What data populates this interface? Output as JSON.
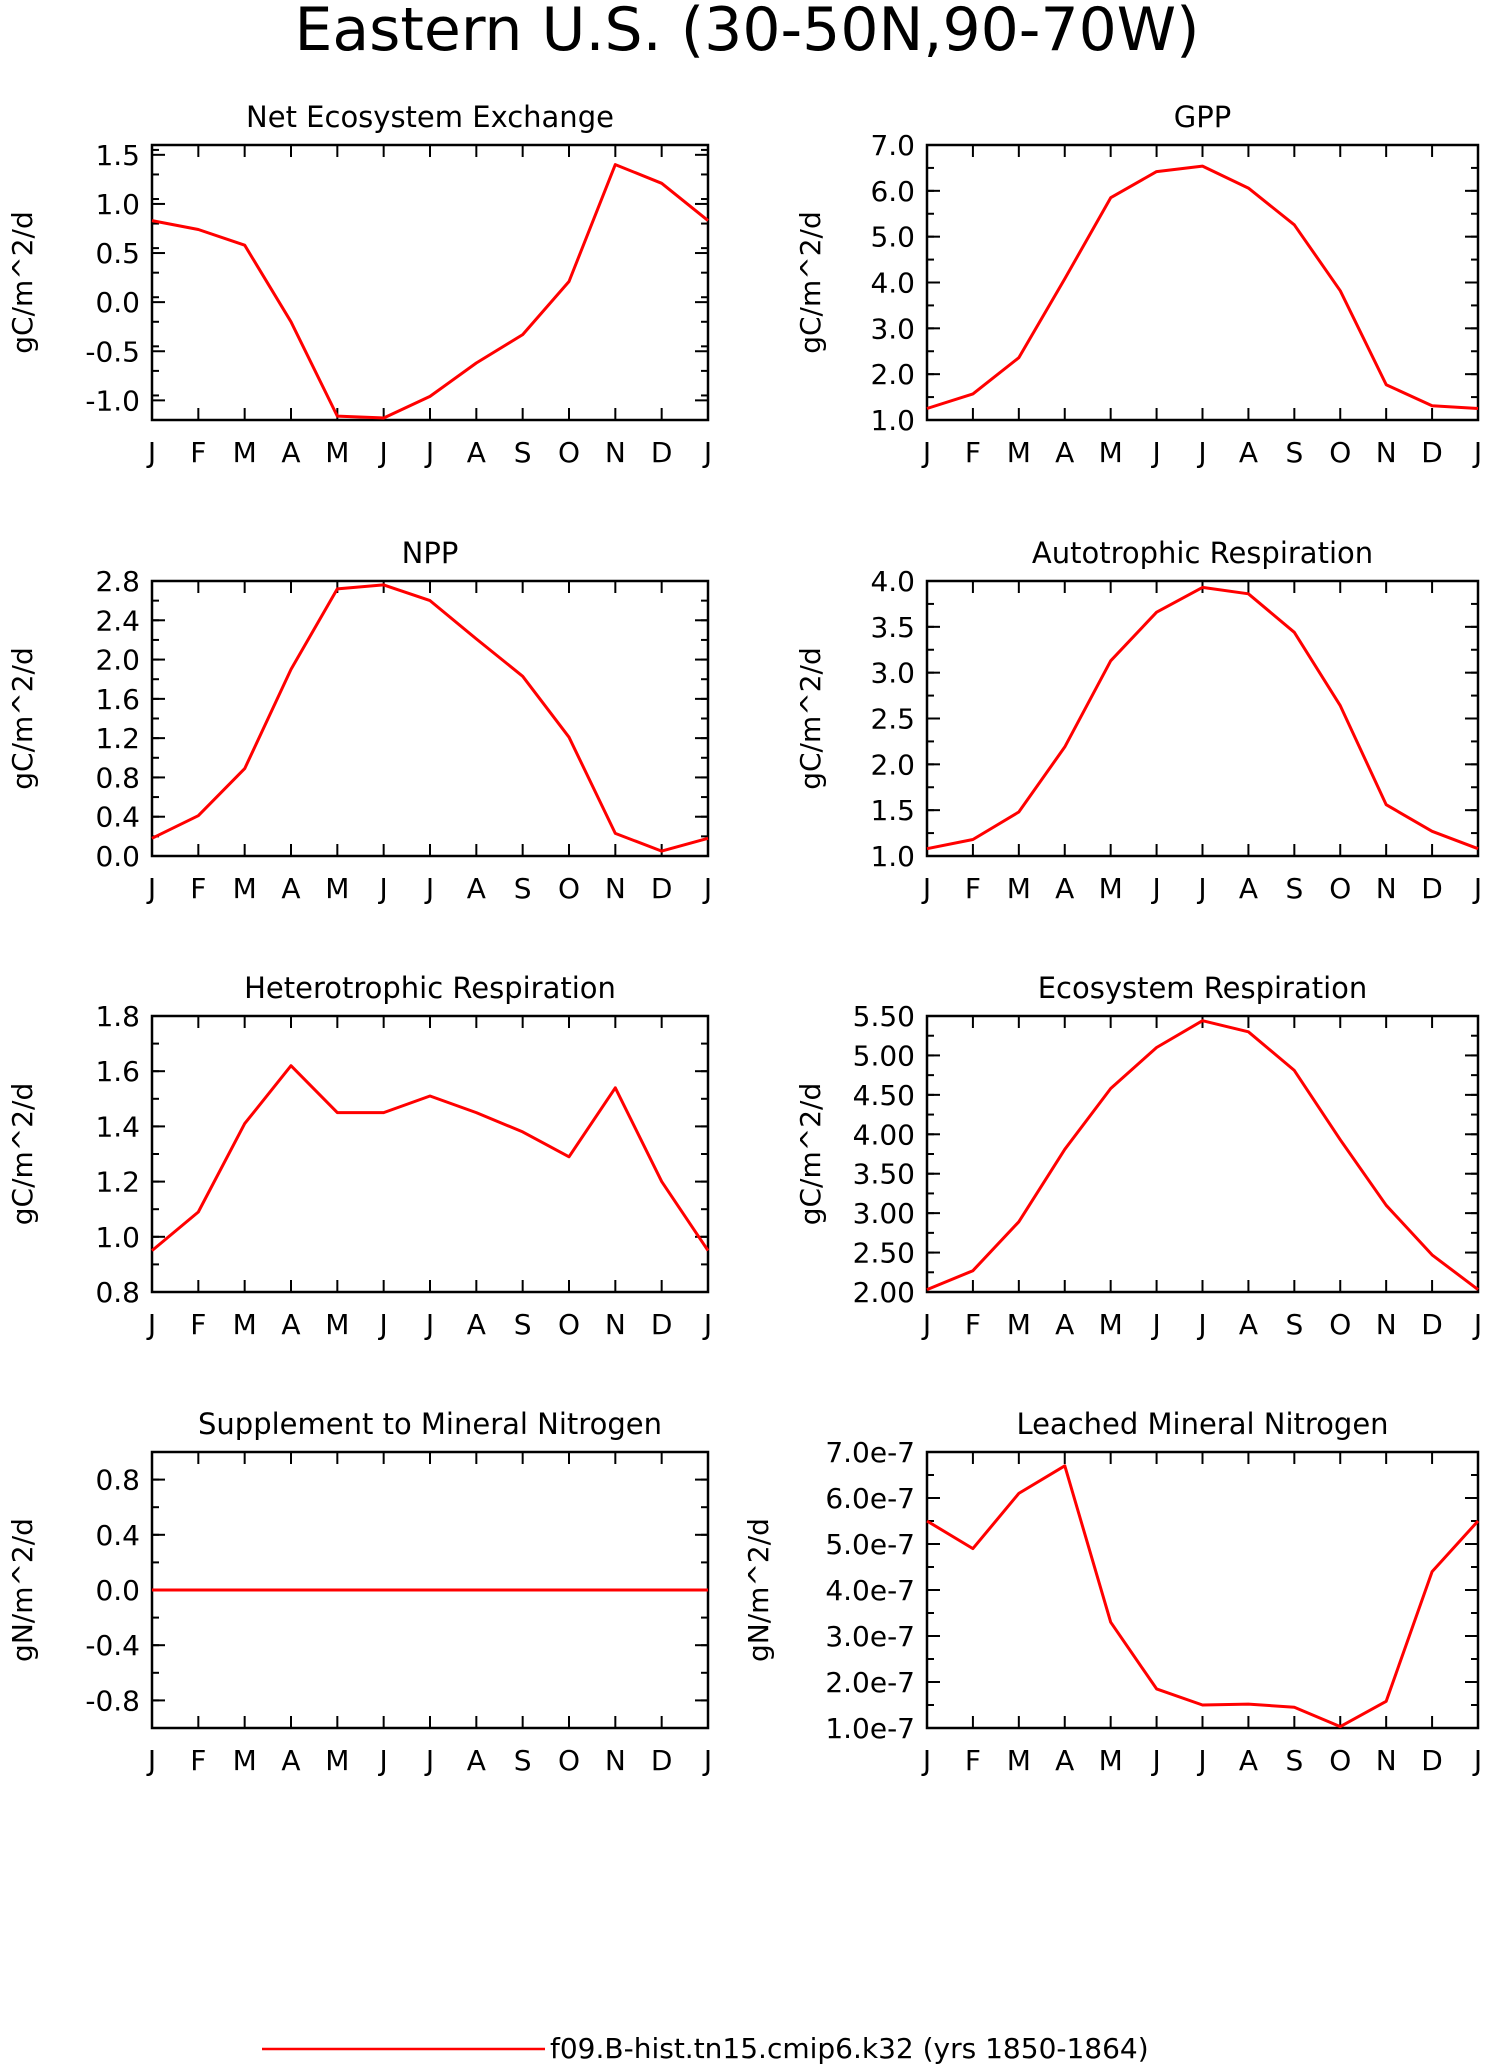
{
  "figure": {
    "title": "Eastern U.S. (30-50N,90-70W)",
    "legend": {
      "label": "f09.B-hist.tn15.cmip6.k32 (yrs 1850-1864)",
      "color": "#ff0000"
    }
  },
  "chart_data": [
    {
      "type": "line",
      "title": "Net Ecosystem Exchange",
      "ylabel": "gC/m^2/d",
      "categories": [
        "J",
        "F",
        "M",
        "A",
        "M",
        "J",
        "J",
        "A",
        "S",
        "O",
        "N",
        "D",
        "J"
      ],
      "ylim": [
        -1.2,
        1.6
      ],
      "yticks": [
        "1.5",
        "1.0",
        "0.5",
        "0.0",
        "-0.5",
        "-1.0"
      ],
      "ytick_values": [
        1.5,
        1.0,
        0.5,
        0.0,
        -0.5,
        -1.0
      ],
      "series": [
        {
          "values": [
            0.83,
            0.74,
            0.58,
            -0.2,
            -1.16,
            -1.18,
            -0.96,
            -0.62,
            -0.33,
            0.21,
            1.4,
            1.21,
            0.83
          ]
        }
      ]
    },
    {
      "type": "line",
      "title": "GPP",
      "ylabel": "gC/m^2/d",
      "categories": [
        "J",
        "F",
        "M",
        "A",
        "M",
        "J",
        "J",
        "A",
        "S",
        "O",
        "N",
        "D",
        "J"
      ],
      "ylim": [
        1.0,
        7.0
      ],
      "yticks": [
        "7.0",
        "6.0",
        "5.0",
        "4.0",
        "3.0",
        "2.0",
        "1.0"
      ],
      "ytick_values": [
        7.0,
        6.0,
        5.0,
        4.0,
        3.0,
        2.0,
        1.0
      ],
      "series": [
        {
          "values": [
            1.25,
            1.57,
            2.36,
            4.08,
            5.85,
            6.42,
            6.54,
            6.06,
            5.26,
            3.82,
            1.77,
            1.31,
            1.25
          ]
        }
      ]
    },
    {
      "type": "line",
      "title": "NPP",
      "ylabel": "gC/m^2/d",
      "categories": [
        "J",
        "F",
        "M",
        "A",
        "M",
        "J",
        "J",
        "A",
        "S",
        "O",
        "N",
        "D",
        "J"
      ],
      "ylim": [
        0.0,
        2.8
      ],
      "yticks": [
        "2.8",
        "2.4",
        "2.0",
        "1.6",
        "1.2",
        "0.8",
        "0.4",
        "0.0"
      ],
      "ytick_values": [
        2.8,
        2.4,
        2.0,
        1.6,
        1.2,
        0.8,
        0.4,
        0.0
      ],
      "series": [
        {
          "values": [
            0.18,
            0.41,
            0.89,
            1.9,
            2.72,
            2.76,
            2.6,
            2.21,
            1.83,
            1.21,
            0.23,
            0.05,
            0.18
          ]
        }
      ]
    },
    {
      "type": "line",
      "title": "Autotrophic Respiration",
      "ylabel": "gC/m^2/d",
      "categories": [
        "J",
        "F",
        "M",
        "A",
        "M",
        "J",
        "J",
        "A",
        "S",
        "O",
        "N",
        "D",
        "J"
      ],
      "ylim": [
        1.0,
        4.0
      ],
      "yticks": [
        "4.0",
        "3.5",
        "3.0",
        "2.5",
        "2.0",
        "1.5",
        "1.0"
      ],
      "ytick_values": [
        4.0,
        3.5,
        3.0,
        2.5,
        2.0,
        1.5,
        1.0
      ],
      "series": [
        {
          "values": [
            1.08,
            1.18,
            1.48,
            2.19,
            3.13,
            3.66,
            3.93,
            3.86,
            3.44,
            2.64,
            1.56,
            1.27,
            1.08
          ]
        }
      ]
    },
    {
      "type": "line",
      "title": "Heterotrophic Respiration",
      "ylabel": "gC/m^2/d",
      "categories": [
        "J",
        "F",
        "M",
        "A",
        "M",
        "J",
        "J",
        "A",
        "S",
        "O",
        "N",
        "D",
        "J"
      ],
      "ylim": [
        0.8,
        1.8
      ],
      "yticks": [
        "1.8",
        "1.6",
        "1.4",
        "1.2",
        "1.0",
        "0.8"
      ],
      "ytick_values": [
        1.8,
        1.6,
        1.4,
        1.2,
        1.0,
        0.8
      ],
      "series": [
        {
          "values": [
            0.95,
            1.09,
            1.41,
            1.62,
            1.45,
            1.45,
            1.51,
            1.45,
            1.38,
            1.29,
            1.54,
            1.2,
            0.95
          ]
        }
      ]
    },
    {
      "type": "line",
      "title": "Ecosystem Respiration",
      "ylabel": "gC/m^2/d",
      "categories": [
        "J",
        "F",
        "M",
        "A",
        "M",
        "J",
        "J",
        "A",
        "S",
        "O",
        "N",
        "D",
        "J"
      ],
      "ylim": [
        2.0,
        5.5
      ],
      "yticks": [
        "5.50",
        "5.00",
        "4.50",
        "4.00",
        "3.50",
        "3.00",
        "2.50",
        "2.00"
      ],
      "ytick_values": [
        5.5,
        5.0,
        4.5,
        4.0,
        3.5,
        3.0,
        2.5,
        2.0
      ],
      "series": [
        {
          "values": [
            2.03,
            2.27,
            2.89,
            3.81,
            4.58,
            5.1,
            5.44,
            5.3,
            4.81,
            3.93,
            3.1,
            2.47,
            2.03
          ]
        }
      ]
    },
    {
      "type": "line",
      "title": "Supplement to Mineral Nitrogen",
      "ylabel": "gN/m^2/d",
      "categories": [
        "J",
        "F",
        "M",
        "A",
        "M",
        "J",
        "J",
        "A",
        "S",
        "O",
        "N",
        "D",
        "J"
      ],
      "ylim": [
        -1.0,
        1.0
      ],
      "yticks": [
        "0.8",
        "0.4",
        "0.0",
        "-0.4",
        "-0.8"
      ],
      "ytick_values": [
        0.8,
        0.4,
        0.0,
        -0.4,
        -0.8
      ],
      "series": [
        {
          "values": [
            0,
            0,
            0,
            0,
            0,
            0,
            0,
            0,
            0,
            0,
            0,
            0,
            0
          ]
        }
      ]
    },
    {
      "type": "line",
      "title": "Leached Mineral Nitrogen",
      "ylabel": "gN/m^2/d",
      "categories": [
        "J",
        "F",
        "M",
        "A",
        "M",
        "J",
        "J",
        "A",
        "S",
        "O",
        "N",
        "D",
        "J"
      ],
      "ylim": [
        1e-07,
        7e-07
      ],
      "yticks": [
        "7.0e-7",
        "6.0e-7",
        "5.0e-7",
        "4.0e-7",
        "3.0e-7",
        "2.0e-7",
        "1.0e-7"
      ],
      "ytick_values": [
        7e-07,
        6e-07,
        5e-07,
        4e-07,
        3e-07,
        2e-07,
        1e-07
      ],
      "series": [
        {
          "values": [
            5.5e-07,
            4.9e-07,
            6.1e-07,
            6.7e-07,
            3.3e-07,
            1.85e-07,
            1.5e-07,
            1.52e-07,
            1.45e-07,
            1.03e-07,
            1.58e-07,
            4.4e-07,
            5.5e-07
          ]
        }
      ]
    }
  ]
}
